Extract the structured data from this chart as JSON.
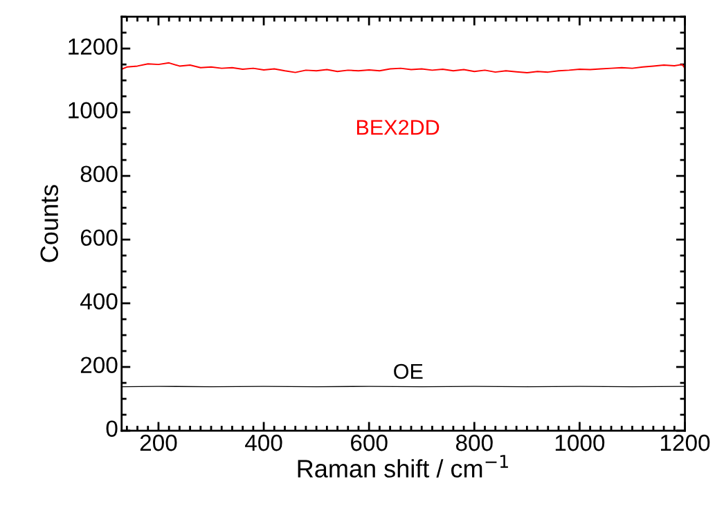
{
  "chart_data": {
    "type": "line",
    "xlabel": "Raman shift / cm$^{−1}$",
    "ylabel": "Counts",
    "xlim": [
      130,
      1200
    ],
    "ylim": [
      0,
      1300
    ],
    "xticks": [
      200,
      400,
      600,
      800,
      1000,
      1200
    ],
    "yticks": [
      0,
      200,
      400,
      600,
      800,
      1000,
      1200
    ],
    "grid": false,
    "legend": false,
    "marker": "none",
    "line_style": "solid",
    "series": [
      {
        "name": "BEX2DD",
        "color": "#ff0000",
        "x": [
          130,
          140,
          160,
          180,
          200,
          220,
          240,
          260,
          280,
          300,
          320,
          340,
          360,
          380,
          400,
          420,
          440,
          460,
          480,
          500,
          520,
          540,
          560,
          580,
          600,
          620,
          640,
          660,
          680,
          700,
          720,
          740,
          760,
          780,
          800,
          820,
          840,
          860,
          880,
          900,
          920,
          940,
          960,
          980,
          1000,
          1020,
          1040,
          1060,
          1080,
          1100,
          1120,
          1140,
          1160,
          1180,
          1195,
          1200
        ],
        "values": [
          1135,
          1142,
          1145,
          1152,
          1150,
          1155,
          1145,
          1148,
          1140,
          1142,
          1138,
          1140,
          1135,
          1138,
          1133,
          1136,
          1130,
          1125,
          1132,
          1130,
          1134,
          1128,
          1132,
          1130,
          1133,
          1130,
          1136,
          1138,
          1134,
          1136,
          1132,
          1135,
          1130,
          1134,
          1128,
          1132,
          1126,
          1130,
          1127,
          1124,
          1128,
          1126,
          1130,
          1132,
          1135,
          1134,
          1136,
          1138,
          1140,
          1138,
          1142,
          1145,
          1148,
          1146,
          1150,
          1138
        ]
      },
      {
        "name": "OE",
        "color": "#000000",
        "x": [
          130,
          200,
          300,
          400,
          500,
          600,
          700,
          800,
          900,
          1000,
          1100,
          1200
        ],
        "values": [
          138,
          139,
          138,
          139,
          138,
          139,
          138,
          139,
          138,
          139,
          138,
          139
        ]
      }
    ]
  }
}
